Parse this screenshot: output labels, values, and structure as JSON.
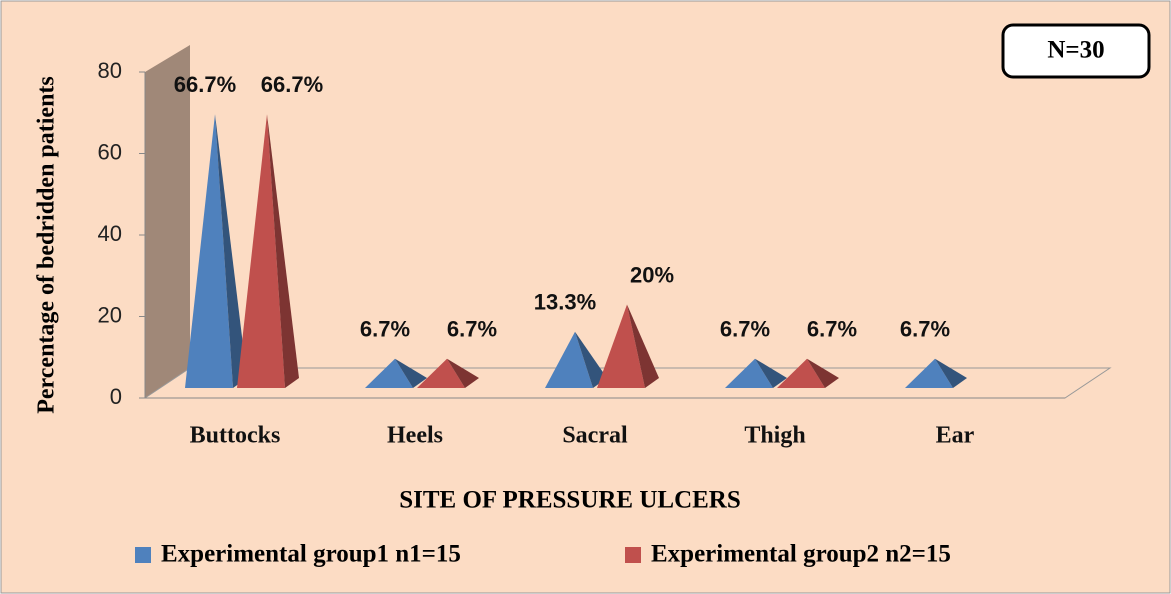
{
  "chart_data": {
    "type": "pyramid",
    "title": null,
    "annotation": "N=30",
    "xlabel": "SITE OF PRESSURE ULCERS",
    "ylabel": "Percentage of bedridden patients",
    "categories": [
      "Buttocks",
      "Heels",
      "Sacral",
      "Thigh",
      "Ear"
    ],
    "series": [
      {
        "name": "Experimental group1 n1=15",
        "color": "#4f81bd",
        "values": [
          66.7,
          6.7,
          13.3,
          6.7,
          6.7
        ],
        "value_labels": [
          "66.7%",
          "6.7%",
          "13.3%",
          "6.7%",
          "6.7%"
        ]
      },
      {
        "name": "Experimental group2 n2=15",
        "color": "#c0504d",
        "values": [
          66.7,
          6.7,
          20,
          6.7,
          null
        ],
        "value_labels": [
          "66.7%",
          "6.7%",
          "20%",
          "6.7%",
          null
        ]
      }
    ],
    "ylim": [
      0,
      80
    ],
    "yticks": [
      0,
      20,
      40,
      60,
      80
    ],
    "grid": false,
    "legend": "bottom"
  }
}
